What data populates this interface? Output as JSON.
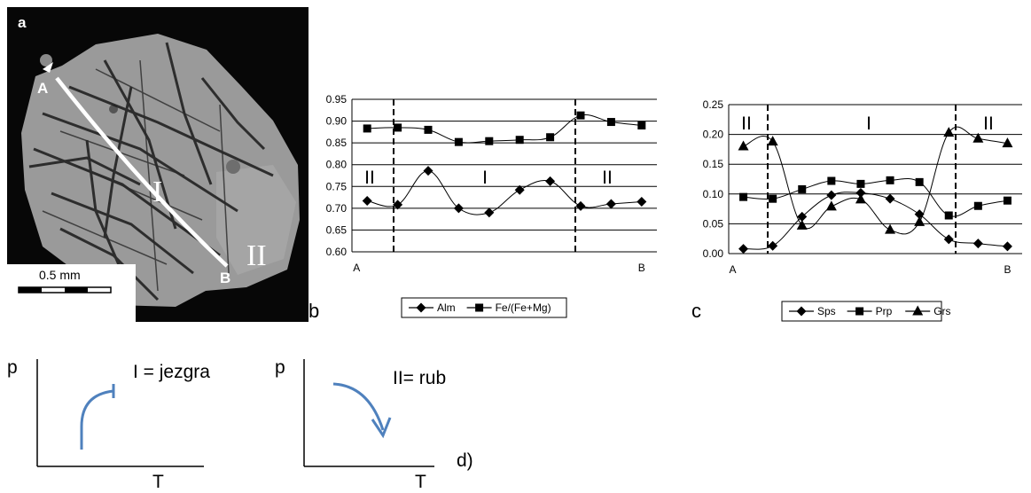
{
  "panel_a": {
    "letter": "a",
    "point_a": "A",
    "point_b": "B",
    "zone_core": "I",
    "zone_rim": "II",
    "scale_label": "0.5 mm"
  },
  "panel_b": {
    "letter": "b"
  },
  "panel_c": {
    "letter": "c"
  },
  "panel_d": {
    "letter": "d)",
    "diagram1": {
      "y_axis": "p",
      "x_axis": "T",
      "note": "I = jezgra"
    },
    "diagram2": {
      "y_axis": "p",
      "x_axis": "T",
      "note": "II= rub"
    },
    "arrow_color": "#4f81bd"
  },
  "chart_data": [
    {
      "type": "line",
      "panel": "b",
      "x": [
        1,
        2,
        3,
        4,
        5,
        6,
        7,
        8,
        9,
        10
      ],
      "x_end_labels": [
        "A",
        "B"
      ],
      "ylim": [
        0.6,
        0.95
      ],
      "yticks": [
        "0.60",
        "0.65",
        "0.70",
        "0.75",
        "0.80",
        "0.85",
        "0.90",
        "0.95"
      ],
      "grid": true,
      "zone_labels": [
        "II",
        "I",
        "II"
      ],
      "series": [
        {
          "name": "Alm",
          "marker": "diamond",
          "values": [
            0.717,
            0.708,
            0.786,
            0.7,
            0.69,
            0.742,
            0.762,
            0.705,
            0.71,
            0.715
          ]
        },
        {
          "name": "Fe/(Fe+Mg)",
          "marker": "square",
          "values": [
            0.883,
            0.885,
            0.88,
            0.852,
            0.854,
            0.857,
            0.863,
            0.913,
            0.898,
            0.89
          ]
        }
      ],
      "legend_position": "bottom"
    },
    {
      "type": "line",
      "panel": "c",
      "x": [
        1,
        2,
        3,
        4,
        5,
        6,
        7,
        8,
        9,
        10
      ],
      "x_end_labels": [
        "A",
        "B"
      ],
      "ylim": [
        0.0,
        0.25
      ],
      "yticks": [
        "0.00",
        "0.05",
        "0.10",
        "0.15",
        "0.20",
        "0.25"
      ],
      "grid": true,
      "zone_labels": [
        "II",
        "I",
        "II"
      ],
      "series": [
        {
          "name": "Sps",
          "marker": "diamond",
          "values": [
            0.008,
            0.013,
            0.062,
            0.098,
            0.102,
            0.092,
            0.066,
            0.024,
            0.017,
            0.012
          ]
        },
        {
          "name": "Prp",
          "marker": "square",
          "values": [
            0.095,
            0.092,
            0.108,
            0.122,
            0.117,
            0.123,
            0.12,
            0.064,
            0.08,
            0.089
          ]
        },
        {
          "name": "Grs",
          "marker": "triangle",
          "values": [
            0.18,
            0.188,
            0.047,
            0.079,
            0.091,
            0.04,
            0.053,
            0.203,
            0.193,
            0.185
          ]
        }
      ],
      "legend_position": "bottom"
    }
  ]
}
